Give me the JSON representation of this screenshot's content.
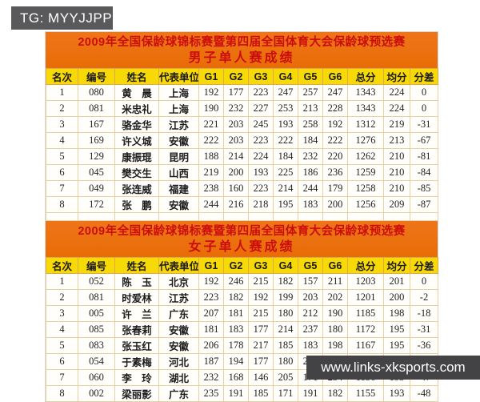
{
  "badge": {
    "text": "TG: MYYJJPP"
  },
  "watermark": {
    "text": "www.links-xksports.com"
  },
  "colors": {
    "banner_bg": "#ee7519",
    "banner_text": "#cb0d0d",
    "header_bg": "#f7d905",
    "grid_border": "#eacfa2",
    "badge_bg": "#59595c",
    "watermark_bg": "#434346"
  },
  "tables": [
    {
      "title": "2009年全国保龄球锦标赛暨第四届全国体育大会保龄球预选赛",
      "subtitle": "男子单人赛成绩",
      "columns": [
        "名次",
        "编号",
        "姓名",
        "代表单位",
        "G1",
        "G2",
        "G3",
        "G4",
        "G5",
        "G6",
        "总分",
        "均分",
        "分差"
      ],
      "empty_trailing_rows": 1,
      "rows": [
        [
          "1",
          "080",
          "黄　晨",
          "上海",
          "192",
          "177",
          "223",
          "247",
          "257",
          "247",
          "1343",
          "224",
          "0"
        ],
        [
          "2",
          "081",
          "米忠礼",
          "上海",
          "190",
          "232",
          "227",
          "253",
          "213",
          "228",
          "1343",
          "224",
          "0"
        ],
        [
          "3",
          "167",
          "骆金华",
          "江苏",
          "221",
          "203",
          "245",
          "193",
          "258",
          "192",
          "1312",
          "219",
          "-31"
        ],
        [
          "4",
          "169",
          "许义城",
          "安徽",
          "222",
          "203",
          "223",
          "222",
          "184",
          "222",
          "1276",
          "213",
          "-67"
        ],
        [
          "5",
          "129",
          "康振琨",
          "昆明",
          "188",
          "214",
          "224",
          "184",
          "232",
          "220",
          "1262",
          "210",
          "-81"
        ],
        [
          "6",
          "045",
          "樊交生",
          "山西",
          "219",
          "200",
          "193",
          "225",
          "186",
          "236",
          "1259",
          "210",
          "-84"
        ],
        [
          "7",
          "049",
          "张连威",
          "福建",
          "238",
          "160",
          "223",
          "214",
          "244",
          "179",
          "1258",
          "210",
          "-85"
        ],
        [
          "8",
          "172",
          "张　鹏",
          "安徽",
          "244",
          "216",
          "218",
          "195",
          "183",
          "200",
          "1256",
          "209",
          "-87"
        ]
      ]
    },
    {
      "title": "2009年全国保龄球锦标赛暨第四届全国体育大会保龄球预选赛",
      "subtitle": "女子单人赛成绩",
      "columns": [
        "名次",
        "编号",
        "姓名",
        "代表单位",
        "G1",
        "G2",
        "G3",
        "G4",
        "G5",
        "G6",
        "总分",
        "均分",
        "分差"
      ],
      "empty_trailing_rows": 0,
      "rows": [
        [
          "1",
          "052",
          "陈　玉",
          "北京",
          "192",
          "246",
          "215",
          "182",
          "157",
          "211",
          "1203",
          "201",
          "0"
        ],
        [
          "2",
          "081",
          "时爱林",
          "江苏",
          "223",
          "182",
          "192",
          "199",
          "203",
          "202",
          "1201",
          "200",
          "-2"
        ],
        [
          "3",
          "005",
          "许　兰",
          "广东",
          "207",
          "181",
          "215",
          "180",
          "212",
          "190",
          "1185",
          "198",
          "-18"
        ],
        [
          "4",
          "085",
          "张春莉",
          "安徽",
          "181",
          "183",
          "177",
          "214",
          "237",
          "180",
          "1172",
          "195",
          "-31"
        ],
        [
          "5",
          "083",
          "张玉红",
          "安徽",
          "206",
          "178",
          "217",
          "185",
          "183",
          "198",
          "1167",
          "195",
          "-36"
        ],
        [
          "6",
          "054",
          "于素梅",
          "河北",
          "187",
          "194",
          "177",
          "180",
          "223",
          "203",
          "1164",
          "194",
          "-39"
        ],
        [
          "7",
          "060",
          "李　玲",
          "湖北",
          "232",
          "168",
          "146",
          "205",
          "171",
          "234",
          "1156",
          "193",
          "-47"
        ],
        [
          "8",
          "002",
          "梁丽影",
          "广东",
          "235",
          "191",
          "185",
          "171",
          "191",
          "182",
          "1155",
          "193",
          "-48"
        ]
      ]
    }
  ]
}
